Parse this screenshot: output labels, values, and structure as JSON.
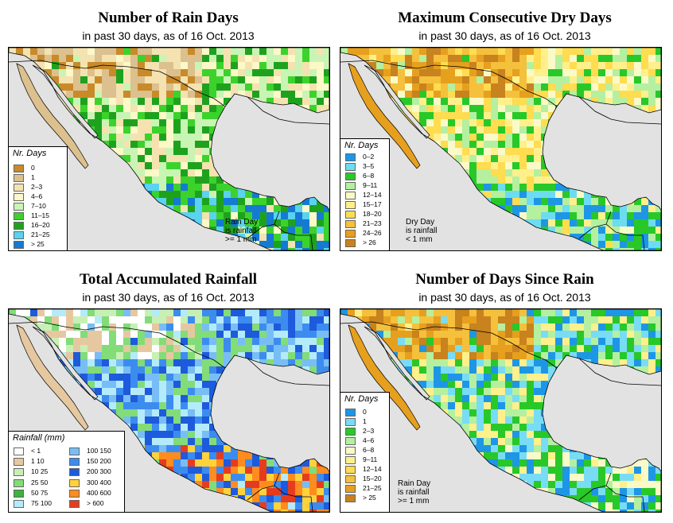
{
  "panels": [
    {
      "title": "Number of Rain Days",
      "subtitle": "in past 30 days, as of  16 Oct. 2013",
      "legend_title": "Nr. Days",
      "legend": [
        {
          "label": "0",
          "color": "#c98a2a"
        },
        {
          "label": "1",
          "color": "#dcc08e"
        },
        {
          "label": "2–3",
          "color": "#f4e2b0"
        },
        {
          "label": "4–6",
          "color": "#fcf8c8"
        },
        {
          "label": "7–10",
          "color": "#c8f5b4"
        },
        {
          "label": "11–15",
          "color": "#3cd22c"
        },
        {
          "label": "16–20",
          "color": "#1ea21e"
        },
        {
          "label": "21–25",
          "color": "#5ad2f0"
        },
        {
          "label": "> 25",
          "color": "#147ad2"
        }
      ],
      "note": "Rain Day\nis rainfall\n>= 1 mm"
    },
    {
      "title": "Maximum Consecutive Dry Days",
      "subtitle": "in past 30 days, as of  16 Oct. 2013",
      "legend_title": "Nr. Days",
      "legend": [
        {
          "label": "0–2",
          "color": "#1e96e6"
        },
        {
          "label": "3–5",
          "color": "#6edcf0"
        },
        {
          "label": "6–8",
          "color": "#28c828"
        },
        {
          "label": "9–11",
          "color": "#b4f0a0"
        },
        {
          "label": "12–14",
          "color": "#fafac8"
        },
        {
          "label": "15–17",
          "color": "#fff08c"
        },
        {
          "label": "18–20",
          "color": "#ffdc50"
        },
        {
          "label": "21–23",
          "color": "#f5c03c"
        },
        {
          "label": "24–26",
          "color": "#e6a01e"
        },
        {
          "label": "> 26",
          "color": "#c8821e"
        }
      ],
      "note": "Dry Day\nis rainfall\n< 1 mm"
    },
    {
      "title": "Total Accumulated Rainfall",
      "subtitle": "in past 30 days, as of  16 Oct. 2013",
      "legend_title": "Rainfall (mm)",
      "legend": [
        {
          "label": "< 1",
          "color": "#ffffff"
        },
        {
          "label": "1   10",
          "color": "#e6c8a0"
        },
        {
          "label": "10   25",
          "color": "#c8f0b4"
        },
        {
          "label": "25   50",
          "color": "#82dc78"
        },
        {
          "label": "50   75",
          "color": "#3cb43c"
        },
        {
          "label": "75   100",
          "color": "#b4ebfa"
        },
        {
          "label": "100  150",
          "color": "#78bef5"
        },
        {
          "label": "150  200",
          "color": "#3c8cf0"
        },
        {
          "label": "200  300",
          "color": "#1e5adc"
        },
        {
          "label": "300  400",
          "color": "#ffd23c"
        },
        {
          "label": "400  600",
          "color": "#ff8c1e"
        },
        {
          "label": "> 600",
          "color": "#e63c1e"
        }
      ],
      "note": ""
    },
    {
      "title": "Number of Days Since Rain",
      "subtitle": "in past 30 days, as of  16 Oct. 2013",
      "legend_title": "Nr. Days",
      "legend": [
        {
          "label": "0",
          "color": "#1e96e6"
        },
        {
          "label": "1",
          "color": "#78dcf5"
        },
        {
          "label": "2–3",
          "color": "#28c828"
        },
        {
          "label": "4–6",
          "color": "#b4f0a0"
        },
        {
          "label": "6–8",
          "color": "#fafac8"
        },
        {
          "label": "9–11",
          "color": "#fff08c"
        },
        {
          "label": "12–14",
          "color": "#ffdc50"
        },
        {
          "label": "15–20",
          "color": "#f5c03c"
        },
        {
          "label": "21–25",
          "color": "#e6a01e"
        },
        {
          "label": "> 25",
          "color": "#c8821e"
        }
      ],
      "note": "Rain Day\nis rainfall\n>= 1 mm"
    }
  ]
}
